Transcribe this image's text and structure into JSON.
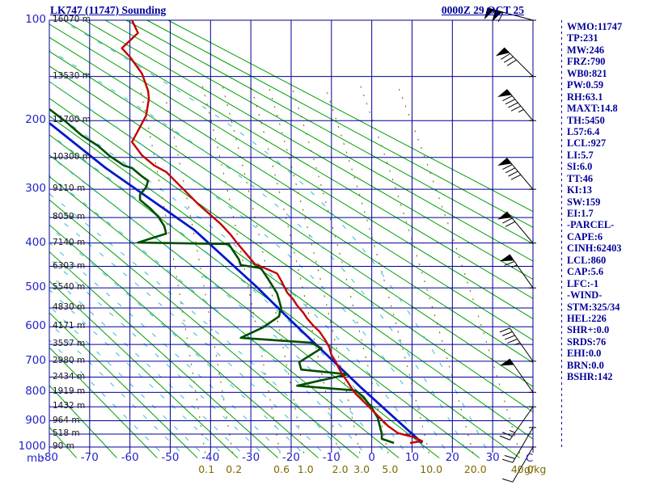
{
  "header": {
    "title": "LK747 (11747) Sounding",
    "datetime": "0000Z 29 OCT 25"
  },
  "axes": {
    "pressure_unit": "mb",
    "temp_unit": "C",
    "mixing_unit": "g/kg",
    "pressure_labels": [
      100,
      200,
      300,
      400,
      500,
      600,
      700,
      800,
      900,
      1000
    ],
    "temp_labels": [
      -80,
      -70,
      -60,
      -50,
      -40,
      -30,
      -20,
      -10,
      0,
      10,
      20,
      30
    ],
    "altitude_gridlines": [
      {
        "p": 100,
        "alt": "16070 m"
      },
      {
        "p": 150,
        "alt": "13530 m"
      },
      {
        "p": 200,
        "alt": "11700 m"
      },
      {
        "p": 250,
        "alt": "10300 m"
      },
      {
        "p": 300,
        "alt": "9110 m"
      },
      {
        "p": 350,
        "alt": "8059 m"
      },
      {
        "p": 400,
        "alt": "7140 m"
      },
      {
        "p": 450,
        "alt": "6303 m"
      },
      {
        "p": 500,
        "alt": "5540 m"
      },
      {
        "p": 550,
        "alt": "4830 m"
      },
      {
        "p": 600,
        "alt": "4171 m"
      },
      {
        "p": 650,
        "alt": "3557 m"
      },
      {
        "p": 700,
        "alt": "2980 m"
      },
      {
        "p": 750,
        "alt": "2434 m"
      },
      {
        "p": 800,
        "alt": "1919 m"
      },
      {
        "p": 850,
        "alt": "1432 m"
      },
      {
        "p": 900,
        "alt": "964 m"
      },
      {
        "p": 950,
        "alt": "518 m"
      },
      {
        "p": 1000,
        "alt": "90 m"
      }
    ]
  },
  "stats_panel": {
    "lines": [
      "WMO:11747",
      "TP:231",
      "MW:246",
      "FRZ:790",
      "WB0:821",
      "PW:0.59",
      "RH:63.1",
      "MAXT:14.8",
      "TH:5450",
      "L57:6.4",
      "LCL:927",
      "LI:5.7",
      "SI:6.0",
      "TT:46",
      "KI:13",
      "SW:159",
      "EI:1.7",
      "-PARCEL-",
      "CAPE:6",
      "CINH:62403",
      "LCL:860",
      "CAP:5.6",
      "LFC:-1",
      "-WIND-",
      "STM:325/34",
      "HEL:226",
      "SHR+:0.0",
      "SRDS:76",
      "EHI:0.0",
      "BRN:0.0",
      "BSHR:142"
    ]
  },
  "chart_data": {
    "type": "line",
    "diagram": "stuve-sounding",
    "title": "LK747 (11747) Sounding",
    "x_axis": {
      "label": "C",
      "min": -80,
      "max": 40,
      "tick_step": 10
    },
    "y_axis": {
      "label": "mb",
      "top": 100,
      "bottom": 1000,
      "scale_exponent": 0.286,
      "gridline_step_mb": 50
    },
    "mixing_ratio_lines_gkg": [
      0.1,
      0.2,
      0.6,
      1.0,
      2.0,
      3.0,
      5.0,
      10.0,
      20.0,
      40.0
    ],
    "dry_adiabats_theta_K": {
      "min": 200,
      "max": 430,
      "step": 10
    },
    "moist_adiabats_thetaw_C": {
      "min": -50,
      "max": 30,
      "step": 5
    },
    "series": [
      {
        "name": "temperature",
        "color": "#c40000",
        "width": 2.4,
        "points_p_t": [
          [
            100,
            -59.5
          ],
          [
            110,
            -58
          ],
          [
            123,
            -62
          ],
          [
            131,
            -60
          ],
          [
            147,
            -57
          ],
          [
            165,
            -55.5
          ],
          [
            174,
            -55.3
          ],
          [
            194,
            -56
          ],
          [
            213,
            -58
          ],
          [
            228,
            -59.5
          ],
          [
            247,
            -57
          ],
          [
            262,
            -54
          ],
          [
            272,
            -51
          ],
          [
            298,
            -47
          ],
          [
            326,
            -43
          ],
          [
            362,
            -37.5
          ],
          [
            383,
            -35
          ],
          [
            399,
            -33.5
          ],
          [
            424,
            -31
          ],
          [
            445,
            -29
          ],
          [
            456,
            -26
          ],
          [
            466,
            -23.5
          ],
          [
            482,
            -22.5
          ],
          [
            511,
            -21
          ],
          [
            528,
            -19.5
          ],
          [
            544,
            -18.5
          ],
          [
            562,
            -17
          ],
          [
            578,
            -16
          ],
          [
            597,
            -14.5
          ],
          [
            613,
            -13
          ],
          [
            638,
            -11.5
          ],
          [
            659,
            -10.5
          ],
          [
            681,
            -10
          ],
          [
            700,
            -9
          ],
          [
            726,
            -8
          ],
          [
            747,
            -7
          ],
          [
            765,
            -6
          ],
          [
            786,
            -5
          ],
          [
            805,
            -4
          ],
          [
            832,
            -2
          ],
          [
            860,
            0
          ],
          [
            889,
            2
          ],
          [
            919,
            4
          ],
          [
            946,
            6.5
          ],
          [
            962,
            10.5
          ],
          [
            977,
            12.5
          ],
          [
            984,
            9.5
          ]
        ]
      },
      {
        "name": "dewpoint",
        "color": "#004d00",
        "width": 2.6,
        "points_p_t": [
          [
            186,
            -80
          ],
          [
            201,
            -76
          ],
          [
            219,
            -72
          ],
          [
            233,
            -68
          ],
          [
            248,
            -65
          ],
          [
            262,
            -61.5
          ],
          [
            266,
            -59.5
          ],
          [
            279,
            -57
          ],
          [
            286,
            -55.5
          ],
          [
            297,
            -56
          ],
          [
            309,
            -57.5
          ],
          [
            318,
            -57.5
          ],
          [
            333,
            -55
          ],
          [
            348,
            -53
          ],
          [
            366,
            -51.5
          ],
          [
            381,
            -51
          ],
          [
            399,
            -58
          ],
          [
            402,
            -35.5
          ],
          [
            421,
            -34
          ],
          [
            434,
            -33
          ],
          [
            447,
            -32.5
          ],
          [
            454,
            -27.5
          ],
          [
            482,
            -25.5
          ],
          [
            513,
            -23.5
          ],
          [
            548,
            -22.5
          ],
          [
            572,
            -23
          ],
          [
            602,
            -27
          ],
          [
            631,
            -32.5
          ],
          [
            645,
            -15
          ],
          [
            661,
            -12.5
          ],
          [
            703,
            -18
          ],
          [
            726,
            -17.5
          ],
          [
            741,
            -6
          ],
          [
            778,
            -18.5
          ],
          [
            794,
            -4
          ],
          [
            816,
            -2
          ],
          [
            836,
            -1
          ],
          [
            847,
            -0.2
          ],
          [
            866,
            0.5
          ],
          [
            889,
            1.5
          ],
          [
            919,
            2
          ],
          [
            949,
            2.5
          ],
          [
            968,
            2.5
          ],
          [
            984,
            5.5
          ]
        ]
      },
      {
        "name": "parcel",
        "color": "#0018cc",
        "width": 2.8,
        "points_p_t": [
          [
            203,
            -80
          ],
          [
            266,
            -66
          ],
          [
            374,
            -44
          ],
          [
            498,
            -28.5
          ],
          [
            584,
            -20
          ],
          [
            786,
            -2.5
          ],
          [
            984,
            12.5
          ]
        ]
      }
    ],
    "wind_barbs": {
      "color": "#000000",
      "levels": [
        {
          "p": 100,
          "dir": 285,
          "kt": 110
        },
        {
          "p": 150,
          "dir": 315,
          "kt": 80
        },
        {
          "p": 200,
          "dir": 320,
          "kt": 95
        },
        {
          "p": 300,
          "dir": 320,
          "kt": 90
        },
        {
          "p": 400,
          "dir": 320,
          "kt": 70
        },
        {
          "p": 500,
          "dir": 325,
          "kt": 65
        },
        {
          "p": 700,
          "dir": 325,
          "kt": 45
        },
        {
          "p": 800,
          "dir": 325,
          "kt": 50
        },
        {
          "p": 850,
          "dir": 215,
          "kt": 25
        },
        {
          "p": 925,
          "dir": 210,
          "kt": 20
        },
        {
          "p": 1000,
          "dir": 210,
          "kt": 10
        }
      ]
    },
    "colors": {
      "grid": "#000096",
      "dry_adiabat": "#00a000",
      "moist_adiabat": "#44bedc",
      "mixing_ratio": "#7d6a00",
      "axis_text": "#2222cc",
      "altitude_text": "#1a1a1a",
      "panel_text": "#000099"
    }
  }
}
